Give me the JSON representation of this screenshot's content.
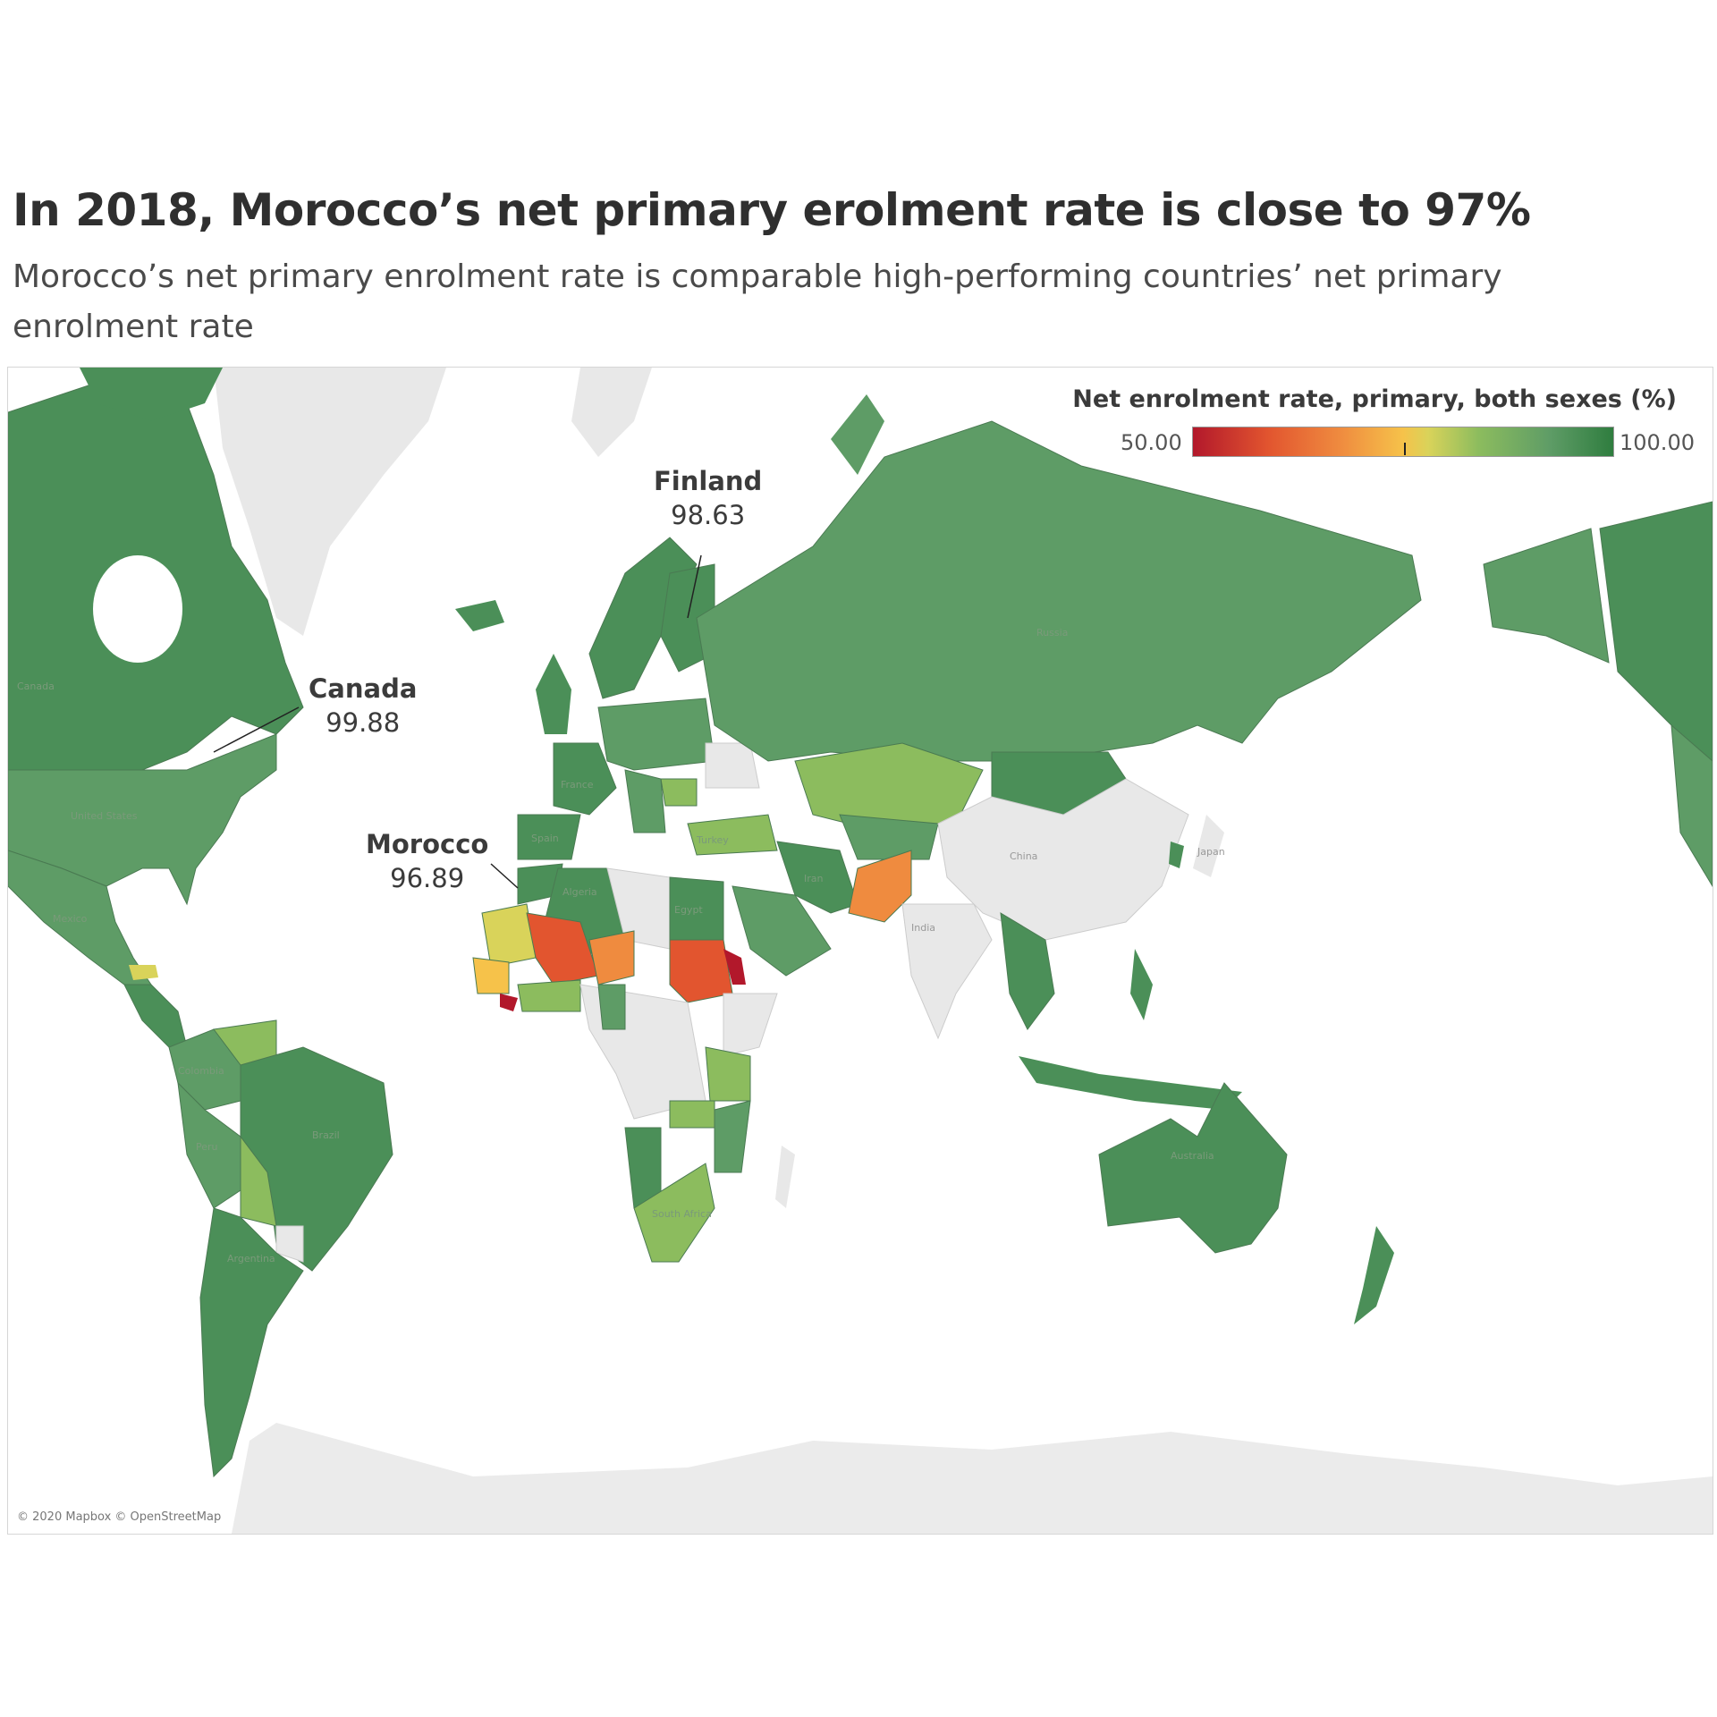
{
  "title": "In 2018, Morocco’s net primary erolment rate is close to 97%",
  "subtitle": "Morocco’s net primary enrolment rate is comparable high-performing countries’ net primary enrolment rate",
  "legend": {
    "title": "Net enrolment rate, primary, both sexes (%)",
    "min": "50.00",
    "max": "100.00",
    "colors": [
      "#b2182b",
      "#e2552f",
      "#ef8b3f",
      "#f6c24a",
      "#8cbc5e",
      "#2f7d3f"
    ]
  },
  "callouts": [
    {
      "country": "Canada",
      "value": "99.88"
    },
    {
      "country": "Finland",
      "value": "98.63"
    },
    {
      "country": "Morocco",
      "value": "96.89"
    }
  ],
  "credit": "© 2020 Mapbox © OpenStreetMap",
  "map_labels": {
    "canada": "Canada",
    "united_states": "United States",
    "mexico": "Mexico",
    "colombia": "Colombia",
    "peru": "Peru",
    "brazil": "Brazil",
    "argentina": "Argentina",
    "france": "France",
    "spain": "Spain",
    "turkey": "Turkey",
    "algeria": "Algeria",
    "egypt": "Egypt",
    "iran": "Iran",
    "india": "India",
    "china": "China",
    "japan": "Japan",
    "russia": "Russia",
    "australia": "Australia",
    "south_africa": "South Africa"
  }
}
